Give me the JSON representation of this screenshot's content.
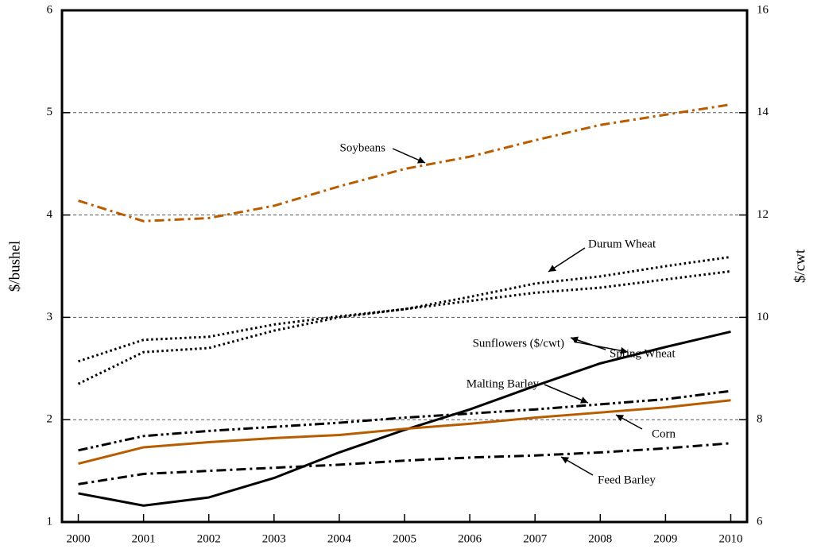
{
  "chart_data": {
    "type": "line",
    "y_label": "$/bushel",
    "y2_label": "$/cwt",
    "x": [
      2000,
      2001,
      2002,
      2003,
      2004,
      2005,
      2006,
      2007,
      2008,
      2009,
      2010
    ],
    "xlim": [
      1999.75,
      2010.25
    ],
    "xticks": [
      2000,
      2001,
      2002,
      2003,
      2004,
      2005,
      2006,
      2007,
      2008,
      2009,
      2010
    ],
    "ylim": [
      1,
      6
    ],
    "yticks": [
      1,
      2,
      3,
      4,
      5,
      6
    ],
    "y2lim": [
      6,
      16
    ],
    "y2ticks": [
      6,
      8,
      10,
      12,
      14,
      16
    ],
    "grid": true,
    "series": [
      {
        "name": "Soybeans",
        "color": "#b85c00",
        "dash": "dashdot",
        "values": [
          4.14,
          3.94,
          3.97,
          4.09,
          4.28,
          4.45,
          4.57,
          4.73,
          4.88,
          4.98,
          5.08
        ]
      },
      {
        "name": "Durum Wheat",
        "color": "#000000",
        "dash": "dotted",
        "values": [
          2.57,
          2.78,
          2.81,
          2.93,
          3.01,
          3.08,
          3.2,
          3.33,
          3.4,
          3.5,
          3.59
        ]
      },
      {
        "name": "Spring Wheat",
        "color": "#000000",
        "dash": "dotted",
        "values": [
          2.35,
          2.66,
          2.7,
          2.87,
          3.0,
          3.08,
          3.16,
          3.24,
          3.29,
          3.37,
          3.45
        ]
      },
      {
        "name": "Sunflowers ($/cwt)",
        "color": "#000000",
        "dash": "solid",
        "axis": "y2",
        "values": [
          6.56,
          6.32,
          6.48,
          6.86,
          7.36,
          7.8,
          8.2,
          8.66,
          9.1,
          9.42,
          9.72
        ]
      },
      {
        "name": "Malting Barley",
        "color": "#000000",
        "dash": "dashdotdot",
        "values": [
          1.7,
          1.84,
          1.89,
          1.93,
          1.97,
          2.02,
          2.06,
          2.1,
          2.15,
          2.2,
          2.28
        ]
      },
      {
        "name": "Corn",
        "color": "#b85c00",
        "dash": "solid",
        "values": [
          1.57,
          1.73,
          1.78,
          1.82,
          1.85,
          1.91,
          1.96,
          2.02,
          2.07,
          2.12,
          2.19
        ]
      },
      {
        "name": "Feed Barley",
        "color": "#000000",
        "dash": "dashdot",
        "values": [
          1.37,
          1.47,
          1.5,
          1.53,
          1.56,
          1.6,
          1.63,
          1.65,
          1.68,
          1.72,
          1.77
        ]
      }
    ]
  }
}
